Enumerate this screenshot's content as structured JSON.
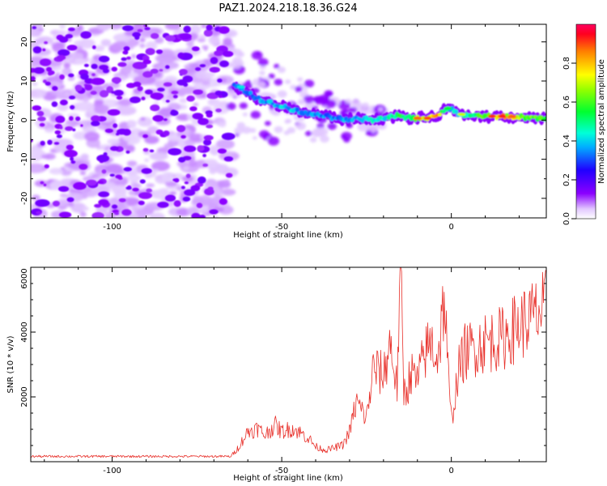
{
  "figure": {
    "title": "PAZ1.2024.218.18.36.G24"
  },
  "chart_data": [
    {
      "type": "heatmap",
      "title": "PAZ1.2024.218.18.36.G24",
      "xlabel": "Height of straight line (km)",
      "ylabel": "Frequency (Hz)",
      "xlim": [
        -124,
        28
      ],
      "ylim": [
        -25,
        24.5
      ],
      "x_ticks": [
        -100,
        -50,
        0
      ],
      "y_ticks": [
        -20,
        -10,
        0,
        10,
        20
      ],
      "noise_region_x": [
        -124,
        -65
      ],
      "ridge": {
        "x": [
          -64,
          -60,
          -56,
          -52,
          -48,
          -44,
          -40,
          -36,
          -32,
          -28,
          -24,
          -20,
          -16,
          -12,
          -8,
          -4,
          -2,
          0,
          2,
          6,
          10,
          15,
          20,
          28
        ],
        "y": [
          9,
          7,
          5,
          4,
          3,
          2,
          1.5,
          1,
          0,
          0.5,
          0,
          0.5,
          1,
          0.5,
          0.5,
          1,
          2.5,
          3,
          1.5,
          1.2,
          1,
          1,
          0.8,
          0.5
        ],
        "amplitude": [
          0.35,
          0.38,
          0.4,
          0.42,
          0.42,
          0.4,
          0.38,
          0.38,
          0.4,
          0.42,
          0.45,
          0.5,
          0.55,
          0.62,
          0.8,
          0.85,
          0.5,
          0.45,
          0.5,
          0.55,
          0.65,
          0.85,
          0.75,
          0.6
        ]
      },
      "colorbar": {
        "label": "Normalized spectral amplitude",
        "range": [
          0,
          1
        ],
        "ticks": [
          "0.0",
          "0.2",
          "0.4",
          "0.6",
          "0.8"
        ],
        "tick_values": [
          0,
          0.2,
          0.4,
          0.6,
          0.8
        ],
        "colormap": "gist_rainbow"
      },
      "grid": false
    },
    {
      "type": "line",
      "xlabel": "Height of straight line (km)",
      "ylabel": "SNR (10 * v/v)",
      "xlim": [
        -124,
        28
      ],
      "ylim": [
        0,
        6000
      ],
      "x_ticks": [
        -100,
        -50,
        0
      ],
      "y_ticks": [
        2000,
        4000,
        6000
      ],
      "color": "#e8302a",
      "grid": false,
      "series": [
        {
          "x": [
            -124,
            -110,
            -100,
            -90,
            -80,
            -70,
            -65,
            -63,
            -60,
            -57,
            -55,
            -52,
            -50,
            -47,
            -45,
            -42,
            -40,
            -37,
            -35,
            -32,
            -30,
            -28,
            -25,
            -23,
            -20,
            -18,
            -16,
            -15,
            -14,
            -13,
            -12,
            -10,
            -8,
            -6,
            -4,
            -2,
            -1,
            0,
            1,
            2,
            4,
            6,
            10,
            15,
            20,
            25,
            28
          ],
          "y": [
            150,
            150,
            150,
            150,
            150,
            150,
            150,
            400,
            900,
            1000,
            800,
            1100,
            900,
            1000,
            900,
            700,
            450,
            350,
            400,
            500,
            900,
            1800,
            1300,
            2800,
            2600,
            3600,
            2200,
            6000,
            2100,
            2200,
            2700,
            2400,
            3200,
            3600,
            3100,
            5000,
            2700,
            1200,
            1900,
            2700,
            3300,
            3400,
            3600,
            3700,
            4100,
            4400,
            4600
          ]
        }
      ]
    }
  ]
}
